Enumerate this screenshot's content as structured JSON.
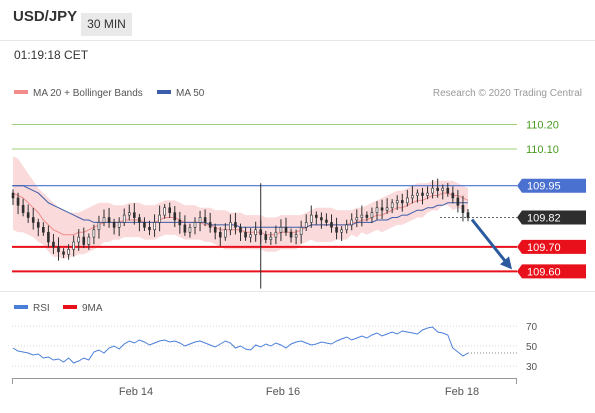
{
  "header": {
    "symbol": "USD/JPY",
    "timeframe": "30 MIN",
    "time": "01:19:18 CET"
  },
  "colors": {
    "bollinger_fill": "#fadadb",
    "ma20": "#f28b8b",
    "ma50": "#3c5da9",
    "candle": "#2e2e2e",
    "resistance_green": "#9ccf7a",
    "resistance_blue": "#4a70d0",
    "support_red": "#e8101a",
    "last_price_tag": "#2e2e2e",
    "rsi": "#4a7fd9",
    "rsi_ma": "#e8101a",
    "arrow": "#2b5a9e"
  },
  "chart_data": [
    {
      "type": "candlestick",
      "title": "",
      "legend": [
        {
          "name": "MA 20 + Bollinger Bands",
          "color": "#f28b8b"
        },
        {
          "name": "MA 50",
          "color": "#3c5da9"
        }
      ],
      "legend_placement": "top-left",
      "source": "Research © 2020 Trading Central",
      "x_ticks": [
        "Feb 14",
        "Feb 16",
        "Feb 18"
      ],
      "y_range": [
        109.52,
        110.3
      ],
      "levels": [
        {
          "label": "110.20",
          "value": 110.2,
          "kind": "resistance",
          "color": "#9ccf7a"
        },
        {
          "label": "110.10",
          "value": 110.1,
          "kind": "resistance",
          "color": "#9ccf7a"
        },
        {
          "label": "109.95",
          "value": 109.95,
          "kind": "pivot",
          "color": "#4a70d0"
        },
        {
          "label": "109.82",
          "value": 109.82,
          "kind": "last",
          "color": "#2e2e2e"
        },
        {
          "label": "109.70",
          "value": 109.7,
          "kind": "support",
          "color": "#e8101a"
        },
        {
          "label": "109.60",
          "value": 109.6,
          "kind": "support",
          "color": "#e8101a"
        }
      ],
      "closes": [
        109.9,
        109.87,
        109.84,
        109.82,
        109.8,
        109.78,
        109.76,
        109.72,
        109.7,
        109.68,
        109.67,
        109.69,
        109.72,
        109.74,
        109.71,
        109.74,
        109.77,
        109.8,
        109.82,
        109.8,
        109.78,
        109.8,
        109.83,
        109.84,
        109.82,
        109.8,
        109.78,
        109.77,
        109.8,
        109.83,
        109.86,
        109.84,
        109.81,
        109.79,
        109.76,
        109.78,
        109.8,
        109.82,
        109.8,
        109.78,
        109.76,
        109.74,
        109.77,
        109.8,
        109.78,
        109.76,
        109.74,
        109.75,
        109.77,
        109.75,
        109.73,
        109.74,
        109.76,
        109.78,
        109.76,
        109.74,
        109.75,
        109.78,
        109.8,
        109.83,
        109.82,
        109.81,
        109.8,
        109.78,
        109.76,
        109.77,
        109.79,
        109.81,
        109.82,
        109.83,
        109.82,
        109.84,
        109.86,
        109.85,
        109.86,
        109.88,
        109.89,
        109.88,
        109.9,
        109.91,
        109.92,
        109.91,
        109.92,
        109.94,
        109.93,
        109.94,
        109.92,
        109.9,
        109.87,
        109.84,
        109.82
      ],
      "ma20": [
        109.92,
        109.91,
        109.9,
        109.88,
        109.86,
        109.84,
        109.81,
        109.79,
        109.77,
        109.76,
        109.75,
        109.75,
        109.75,
        109.76,
        109.76,
        109.77,
        109.78,
        109.79,
        109.8,
        109.8,
        109.8,
        109.8,
        109.81,
        109.81,
        109.81,
        109.81,
        109.8,
        109.8,
        109.8,
        109.81,
        109.82,
        109.82,
        109.82,
        109.81,
        109.8,
        109.8,
        109.8,
        109.8,
        109.79,
        109.79,
        109.78,
        109.77,
        109.77,
        109.77,
        109.77,
        109.77,
        109.76,
        109.76,
        109.76,
        109.76,
        109.75,
        109.75,
        109.75,
        109.76,
        109.76,
        109.76,
        109.76,
        109.77,
        109.78,
        109.79,
        109.79,
        109.79,
        109.79,
        109.79,
        109.79,
        109.79,
        109.79,
        109.8,
        109.8,
        109.81,
        109.81,
        109.82,
        109.83,
        109.83,
        109.84,
        109.85,
        109.86,
        109.86,
        109.87,
        109.88,
        109.89,
        109.89,
        109.9,
        109.91,
        109.91,
        109.92,
        109.92,
        109.91,
        109.91,
        109.9,
        109.89
      ],
      "ma50": [
        109.95,
        109.95,
        109.95,
        109.94,
        109.93,
        109.92,
        109.9,
        109.88,
        109.87,
        109.86,
        109.85,
        109.84,
        109.83,
        109.82,
        109.81,
        109.81,
        109.8,
        109.8,
        109.8,
        109.8,
        109.8,
        109.8,
        109.8,
        109.8,
        109.8,
        109.8,
        109.8,
        109.8,
        109.8,
        109.8,
        109.8,
        109.8,
        109.8,
        109.8,
        109.8,
        109.8,
        109.8,
        109.8,
        109.8,
        109.79,
        109.79,
        109.79,
        109.79,
        109.79,
        109.79,
        109.78,
        109.78,
        109.78,
        109.78,
        109.78,
        109.78,
        109.78,
        109.78,
        109.78,
        109.78,
        109.78,
        109.78,
        109.78,
        109.78,
        109.79,
        109.79,
        109.79,
        109.79,
        109.79,
        109.79,
        109.79,
        109.79,
        109.79,
        109.8,
        109.8,
        109.8,
        109.8,
        109.81,
        109.81,
        109.81,
        109.82,
        109.82,
        109.83,
        109.83,
        109.84,
        109.85,
        109.85,
        109.86,
        109.86,
        109.87,
        109.87,
        109.88,
        109.88,
        109.88,
        109.88,
        109.88
      ],
      "bb_upper": [
        110.07,
        110.06,
        110.03,
        110.0,
        109.97,
        109.94,
        109.92,
        109.9,
        109.88,
        109.86,
        109.85,
        109.84,
        109.84,
        109.84,
        109.85,
        109.86,
        109.87,
        109.88,
        109.88,
        109.88,
        109.87,
        109.87,
        109.87,
        109.88,
        109.88,
        109.88,
        109.87,
        109.87,
        109.87,
        109.88,
        109.89,
        109.89,
        109.89,
        109.88,
        109.87,
        109.87,
        109.87,
        109.86,
        109.86,
        109.86,
        109.85,
        109.85,
        109.85,
        109.84,
        109.84,
        109.84,
        109.83,
        109.83,
        109.83,
        109.83,
        109.82,
        109.82,
        109.82,
        109.83,
        109.83,
        109.83,
        109.83,
        109.83,
        109.84,
        109.85,
        109.86,
        109.86,
        109.86,
        109.86,
        109.85,
        109.85,
        109.85,
        109.85,
        109.86,
        109.86,
        109.87,
        109.88,
        109.89,
        109.9,
        109.91,
        109.92,
        109.93,
        109.93,
        109.94,
        109.95,
        109.96,
        109.96,
        109.96,
        109.97,
        109.97,
        109.97,
        109.97,
        109.97,
        109.96,
        109.95,
        109.94
      ],
      "bb_lower": [
        109.77,
        109.76,
        109.76,
        109.75,
        109.74,
        109.72,
        109.71,
        109.68,
        109.66,
        109.66,
        109.65,
        109.66,
        109.66,
        109.67,
        109.67,
        109.68,
        109.69,
        109.7,
        109.72,
        109.72,
        109.73,
        109.73,
        109.74,
        109.74,
        109.74,
        109.74,
        109.73,
        109.73,
        109.73,
        109.74,
        109.75,
        109.75,
        109.75,
        109.74,
        109.73,
        109.73,
        109.73,
        109.73,
        109.72,
        109.72,
        109.71,
        109.7,
        109.69,
        109.69,
        109.69,
        109.69,
        109.69,
        109.69,
        109.69,
        109.69,
        109.68,
        109.68,
        109.68,
        109.69,
        109.69,
        109.69,
        109.69,
        109.71,
        109.72,
        109.73,
        109.72,
        109.72,
        109.72,
        109.72,
        109.73,
        109.73,
        109.73,
        109.75,
        109.74,
        109.76,
        109.75,
        109.76,
        109.77,
        109.76,
        109.77,
        109.78,
        109.79,
        109.79,
        109.8,
        109.81,
        109.82,
        109.82,
        109.84,
        109.85,
        109.85,
        109.87,
        109.87,
        109.85,
        109.86,
        109.85,
        109.84
      ],
      "outlook_target": 109.6
    },
    {
      "type": "line",
      "title": "",
      "legend": [
        {
          "name": "RSI",
          "color": "#4a7fd9"
        },
        {
          "name": "9MA",
          "color": "#e8101a"
        }
      ],
      "legend_placement": "top-left",
      "y_ticks": [
        "70",
        "50",
        "30"
      ],
      "y_range": [
        20,
        78
      ],
      "rsi": [
        48,
        45,
        44,
        43,
        41,
        42,
        38,
        39,
        36,
        37,
        34,
        38,
        33,
        35,
        38,
        36,
        44,
        46,
        43,
        48,
        50,
        47,
        52,
        55,
        53,
        56,
        54,
        51,
        53,
        55,
        56,
        54,
        55,
        53,
        50,
        52,
        54,
        55,
        53,
        51,
        49,
        52,
        55,
        53,
        48,
        50,
        47,
        46,
        51,
        49,
        52,
        50,
        53,
        51,
        48,
        52,
        54,
        55,
        53,
        51,
        52,
        54,
        53,
        52,
        55,
        57,
        59,
        56,
        58,
        60,
        58,
        61,
        63,
        60,
        62,
        64,
        62,
        65,
        64,
        63,
        62,
        66,
        68,
        69,
        64,
        63,
        61,
        48,
        44,
        40,
        43
      ],
      "rsi_ma_value": 43
    }
  ]
}
